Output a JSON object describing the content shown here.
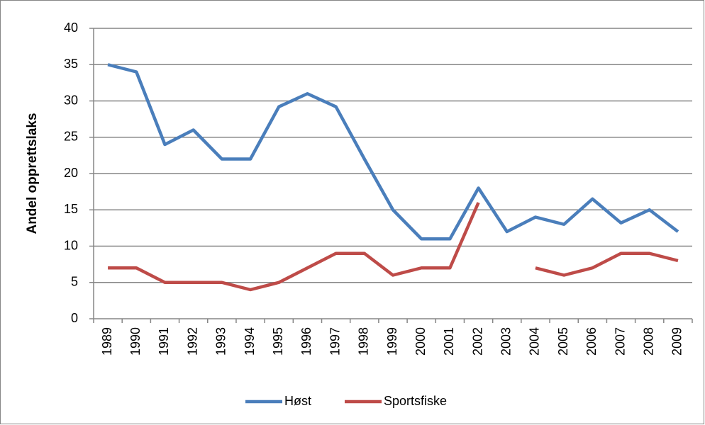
{
  "chart_data": {
    "type": "line",
    "y_label": "Andel opprettslaks",
    "categories": [
      "1989",
      "1990",
      "1991",
      "1992",
      "1993",
      "1994",
      "1995",
      "1996",
      "1997",
      "1998",
      "1999",
      "2000",
      "2001",
      "2002",
      "2003",
      "2004",
      "2005",
      "2006",
      "2007",
      "2008",
      "2009"
    ],
    "series": [
      {
        "name": "Høst",
        "color": "#4a7ebb",
        "values": [
          35,
          34,
          24,
          26,
          22,
          22,
          29.2,
          31,
          29.2,
          22,
          15,
          11,
          11,
          18,
          12,
          14,
          13,
          16.5,
          13.2,
          15,
          12
        ]
      },
      {
        "name": "Sportsfiske",
        "color": "#be4b48",
        "values": [
          7,
          7,
          5,
          5,
          5,
          4,
          5,
          7,
          9,
          9,
          6,
          7,
          7,
          16,
          null,
          7,
          6,
          7,
          9,
          9,
          8
        ]
      }
    ],
    "ylim": [
      0,
      40
    ],
    "yticks": [
      0,
      5,
      10,
      15,
      20,
      25,
      30,
      35,
      40
    ],
    "grid": true,
    "legend": "bottom"
  }
}
